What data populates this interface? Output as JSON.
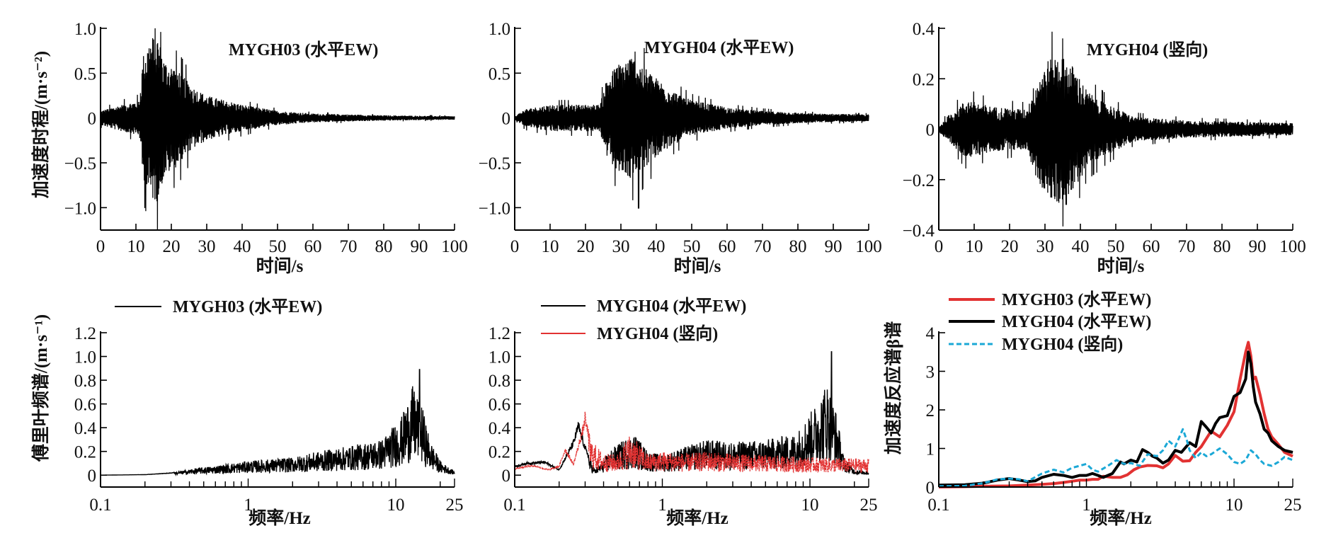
{
  "figure": {
    "x_label_time": "时间/s",
    "x_label_freq": "频率/Hz",
    "y_label_accel": "加速度时程/(m·s⁻²)",
    "y_label_fourier": "傅里叶频谱/(m·s⁻¹)",
    "y_label_beta": "加速度反应谱β谱"
  },
  "colors": {
    "black": "#000000",
    "red": "#e23232",
    "cyan": "#1ba8d6"
  },
  "chart_data": [
    {
      "id": "top-left",
      "type": "line",
      "title": "MYGH03 (水平EW)",
      "xlabel": "时间/s",
      "ylabel": "加速度时程/(m·s⁻²)",
      "xlim": [
        0,
        100
      ],
      "ylim": [
        -1.25,
        1.0
      ],
      "xticks": [
        0,
        10,
        20,
        30,
        40,
        50,
        60,
        70,
        80,
        90,
        100
      ],
      "yticks": [
        -1.0,
        -0.5,
        0,
        0.5,
        1.0
      ],
      "ytick_labels": [
        "−1.0",
        "−0.5",
        "0",
        "0.5",
        "1.0"
      ],
      "series": [
        {
          "name": "MYGH03 (水平EW)",
          "color": "#000000",
          "kind": "waveform",
          "envelope": [
            [
              0,
              0.08
            ],
            [
              5,
              0.14
            ],
            [
              11,
              0.2
            ],
            [
              12,
              0.7
            ],
            [
              14,
              0.9
            ],
            [
              16,
              0.95
            ],
            [
              18,
              0.65
            ],
            [
              22,
              0.55
            ],
            [
              26,
              0.35
            ],
            [
              30,
              0.25
            ],
            [
              40,
              0.15
            ],
            [
              50,
              0.08
            ],
            [
              60,
              0.05
            ],
            [
              80,
              0.03
            ],
            [
              100,
              0.02
            ]
          ],
          "peak": 0.96,
          "trough": -1.02
        }
      ]
    },
    {
      "id": "top-middle",
      "type": "line",
      "title": "MYGH04 (水平EW)",
      "xlabel": "时间/s",
      "ylabel": "",
      "xlim": [
        0,
        100
      ],
      "ylim": [
        -1.25,
        1.0
      ],
      "xticks": [
        0,
        10,
        20,
        30,
        40,
        50,
        60,
        70,
        80,
        90,
        100
      ],
      "yticks": [
        -1.0,
        -0.5,
        0,
        0.5,
        1.0
      ],
      "ytick_labels": [
        "−1.0",
        "−0.5",
        "0",
        "0.5",
        "1.0"
      ],
      "series": [
        {
          "name": "MYGH04 (水平EW)",
          "color": "#000000",
          "kind": "waveform",
          "envelope": [
            [
              0,
              0.02
            ],
            [
              3,
              0.1
            ],
            [
              10,
              0.15
            ],
            [
              24,
              0.15
            ],
            [
              26,
              0.45
            ],
            [
              29,
              0.6
            ],
            [
              33,
              0.7
            ],
            [
              36,
              0.6
            ],
            [
              40,
              0.45
            ],
            [
              45,
              0.3
            ],
            [
              50,
              0.2
            ],
            [
              60,
              0.12
            ],
            [
              70,
              0.08
            ],
            [
              85,
              0.05
            ],
            [
              100,
              0.04
            ]
          ],
          "peak": 0.74,
          "trough": -1.01
        }
      ]
    },
    {
      "id": "top-right",
      "type": "line",
      "title": "MYGH04 (竖向)",
      "xlabel": "时间/s",
      "ylabel": "",
      "xlim": [
        0,
        100
      ],
      "ylim": [
        -0.4,
        0.4
      ],
      "xticks": [
        0,
        10,
        20,
        30,
        40,
        50,
        60,
        70,
        80,
        90,
        100
      ],
      "yticks": [
        -0.4,
        -0.2,
        0,
        0.2,
        0.4
      ],
      "ytick_labels": [
        "−0.4",
        "−0.2",
        "0",
        "0.2",
        "0.4"
      ],
      "series": [
        {
          "name": "MYGH04 (竖向)",
          "color": "#000000",
          "kind": "waveform",
          "envelope": [
            [
              0,
              0.01
            ],
            [
              3,
              0.06
            ],
            [
              8,
              0.12
            ],
            [
              15,
              0.09
            ],
            [
              25,
              0.08
            ],
            [
              27,
              0.18
            ],
            [
              31,
              0.28
            ],
            [
              34,
              0.3
            ],
            [
              38,
              0.25
            ],
            [
              42,
              0.15
            ],
            [
              48,
              0.1
            ],
            [
              55,
              0.05
            ],
            [
              70,
              0.035
            ],
            [
              100,
              0.025
            ]
          ],
          "peak": 0.36,
          "trough": -0.3
        }
      ]
    },
    {
      "id": "bottom-left",
      "type": "line",
      "xscale": "log",
      "xlabel": "频率/Hz",
      "ylabel": "傅里叶频谱/(m·s⁻¹)",
      "xlim": [
        0.1,
        25
      ],
      "ylim": [
        -0.1,
        1.2
      ],
      "xticks": [
        0.1,
        1,
        10,
        25
      ],
      "xtick_labels": [
        "0.1",
        "1",
        "10",
        "25"
      ],
      "yticks": [
        0,
        0.2,
        0.4,
        0.6,
        0.8,
        1.0,
        1.2
      ],
      "ytick_labels": [
        "0",
        "0.2",
        "0.4",
        "0.6",
        "0.8",
        "1.0",
        "1.2"
      ],
      "legend": "top-left",
      "series": [
        {
          "name": "MYGH03 (水平EW)",
          "color": "#000000",
          "kind": "spectrum",
          "envelope": [
            [
              0.1,
              0.0
            ],
            [
              0.2,
              0.005
            ],
            [
              0.3,
              0.02
            ],
            [
              0.45,
              0.06
            ],
            [
              0.6,
              0.08
            ],
            [
              1,
              0.12
            ],
            [
              2,
              0.15
            ],
            [
              3,
              0.2
            ],
            [
              5,
              0.25
            ],
            [
              8,
              0.3
            ],
            [
              11,
              0.5
            ],
            [
              13,
              0.75
            ],
            [
              15,
              0.6
            ],
            [
              17,
              0.3
            ],
            [
              20,
              0.12
            ],
            [
              25,
              0.03
            ]
          ],
          "peak_hz": 14.5,
          "peak": 0.89
        }
      ]
    },
    {
      "id": "bottom-middle",
      "type": "line",
      "xscale": "log",
      "xlabel": "频率/Hz",
      "ylabel": "",
      "xlim": [
        0.1,
        25
      ],
      "ylim": [
        -0.1,
        1.2
      ],
      "xticks": [
        0.1,
        1,
        10,
        25
      ],
      "xtick_labels": [
        "0.1",
        "1",
        "10",
        "25"
      ],
      "yticks": [
        0,
        0.2,
        0.4,
        0.6,
        0.8,
        1.0,
        1.2
      ],
      "ytick_labels": [
        "0",
        "0.2",
        "0.4",
        "0.6",
        "0.8",
        "1.0",
        "1.2"
      ],
      "legend": "top-left",
      "series": [
        {
          "name": "MYGH04 (水平EW)",
          "color": "#000000",
          "kind": "spectrum",
          "envelope": [
            [
              0.1,
              0.08
            ],
            [
              0.12,
              0.11
            ],
            [
              0.16,
              0.12
            ],
            [
              0.2,
              0.05
            ],
            [
              0.25,
              0.3
            ],
            [
              0.27,
              0.46
            ],
            [
              0.3,
              0.25
            ],
            [
              0.35,
              0.05
            ],
            [
              0.45,
              0.22
            ],
            [
              0.55,
              0.3
            ],
            [
              0.65,
              0.35
            ],
            [
              0.8,
              0.2
            ],
            [
              1,
              0.17
            ],
            [
              1.5,
              0.25
            ],
            [
              2,
              0.3
            ],
            [
              3,
              0.28
            ],
            [
              5,
              0.3
            ],
            [
              8,
              0.35
            ],
            [
              11,
              0.6
            ],
            [
              13,
              0.8
            ],
            [
              15,
              0.55
            ],
            [
              17,
              0.15
            ],
            [
              20,
              0.05
            ],
            [
              25,
              0.03
            ]
          ],
          "peak_hz": 14.0,
          "peak": 1.04
        },
        {
          "name": "MYGH04 (竖向)",
          "color": "#e23232",
          "kind": "spectrum",
          "envelope": [
            [
              0.1,
              0.06
            ],
            [
              0.13,
              0.09
            ],
            [
              0.17,
              0.05
            ],
            [
              0.2,
              0.08
            ],
            [
              0.22,
              0.24
            ],
            [
              0.25,
              0.1
            ],
            [
              0.3,
              0.5
            ],
            [
              0.33,
              0.3
            ],
            [
              0.4,
              0.18
            ],
            [
              0.5,
              0.18
            ],
            [
              0.6,
              0.35
            ],
            [
              0.8,
              0.18
            ],
            [
              1,
              0.2
            ],
            [
              1.5,
              0.18
            ],
            [
              2,
              0.2
            ],
            [
              3,
              0.18
            ],
            [
              5,
              0.17
            ],
            [
              10,
              0.15
            ],
            [
              25,
              0.14
            ]
          ],
          "peak_hz": 0.3,
          "peak": 0.53
        }
      ]
    },
    {
      "id": "bottom-right",
      "type": "line",
      "xscale": "log",
      "xlabel": "频率/Hz",
      "ylabel": "加速度反应谱β谱",
      "xlim": [
        0.1,
        25
      ],
      "ylim": [
        0,
        4
      ],
      "xticks": [
        0.1,
        1,
        10,
        25
      ],
      "xtick_labels": [
        "0.1",
        "1",
        "10",
        "25"
      ],
      "yticks": [
        0,
        1,
        2,
        3,
        4
      ],
      "ytick_labels": [
        "0",
        "1",
        "2",
        "3",
        "4"
      ],
      "legend": "top-left",
      "series": [
        {
          "name": "MYGH03 (水平EW)",
          "color": "#e23232",
          "style": "solid",
          "x": [
            0.1,
            0.15,
            0.2,
            0.3,
            0.4,
            0.5,
            0.6,
            0.7,
            0.8,
            0.9,
            1.0,
            1.1,
            1.2,
            1.3,
            1.5,
            1.7,
            1.9,
            2.1,
            2.3,
            2.6,
            3.0,
            3.3,
            3.6,
            4.0,
            4.5,
            5.0,
            5.5,
            6.0,
            7.0,
            8.0,
            9.0,
            10.0,
            11.0,
            12.0,
            12.5,
            13.0,
            13.5,
            14.0,
            15.0,
            16.0,
            17.0,
            18.0,
            20.0,
            22.0,
            25.0
          ],
          "y": [
            0.0,
            0.01,
            0.02,
            0.03,
            0.05,
            0.07,
            0.09,
            0.12,
            0.15,
            0.18,
            0.18,
            0.2,
            0.2,
            0.28,
            0.25,
            0.25,
            0.32,
            0.45,
            0.52,
            0.56,
            0.55,
            0.5,
            0.6,
            0.82,
            0.67,
            0.68,
            0.9,
            1.05,
            1.45,
            1.3,
            1.6,
            1.95,
            2.8,
            3.5,
            3.75,
            3.4,
            2.8,
            2.85,
            2.4,
            1.9,
            1.5,
            1.3,
            1.1,
            0.9,
            0.8
          ]
        },
        {
          "name": "MYGH04 (水平EW)",
          "color": "#000000",
          "style": "solid",
          "x": [
            0.1,
            0.15,
            0.2,
            0.25,
            0.3,
            0.35,
            0.4,
            0.45,
            0.5,
            0.6,
            0.7,
            0.8,
            0.9,
            1.0,
            1.1,
            1.2,
            1.3,
            1.5,
            1.7,
            1.8,
            2.0,
            2.2,
            2.4,
            2.6,
            2.8,
            3.0,
            3.3,
            3.6,
            4.0,
            4.4,
            5.0,
            5.5,
            6.0,
            6.5,
            7.0,
            7.5,
            8.0,
            9.0,
            10.0,
            11.0,
            12.0,
            12.5,
            13.0,
            13.5,
            14.0,
            15.0,
            16.0,
            17.0,
            18.0,
            20.0,
            22.0,
            25.0
          ],
          "y": [
            0.05,
            0.06,
            0.1,
            0.18,
            0.22,
            0.18,
            0.14,
            0.16,
            0.25,
            0.33,
            0.3,
            0.25,
            0.3,
            0.3,
            0.35,
            0.3,
            0.25,
            0.35,
            0.65,
            0.6,
            0.7,
            0.65,
            0.97,
            0.9,
            0.8,
            0.75,
            0.62,
            0.7,
            0.95,
            0.9,
            1.15,
            1.05,
            1.7,
            1.55,
            1.4,
            1.65,
            1.8,
            1.85,
            2.35,
            2.45,
            2.8,
            3.5,
            3.2,
            2.6,
            2.2,
            1.9,
            1.5,
            1.4,
            1.2,
            1.05,
            0.95,
            0.9
          ]
        },
        {
          "name": "MYGH04 (竖向)",
          "color": "#1ba8d6",
          "style": "dashed",
          "x": [
            0.1,
            0.15,
            0.2,
            0.25,
            0.3,
            0.35,
            0.4,
            0.5,
            0.6,
            0.7,
            0.8,
            0.9,
            1.0,
            1.1,
            1.2,
            1.4,
            1.6,
            1.8,
            2.0,
            2.3,
            2.6,
            3.0,
            3.3,
            3.6,
            4.0,
            4.5,
            4.8,
            5.0,
            5.5,
            6.0,
            6.5,
            7.0,
            8.0,
            9.0,
            10.0,
            11.0,
            12.0,
            13.0,
            14.0,
            15.0,
            16.0,
            18.0,
            20.0,
            22.0,
            25.0
          ],
          "y": [
            0.02,
            0.03,
            0.1,
            0.2,
            0.22,
            0.2,
            0.15,
            0.35,
            0.45,
            0.38,
            0.5,
            0.55,
            0.6,
            0.45,
            0.4,
            0.55,
            0.7,
            0.6,
            0.62,
            0.55,
            0.85,
            0.8,
            0.95,
            1.2,
            1.05,
            1.5,
            1.2,
            0.95,
            0.75,
            0.9,
            0.8,
            0.85,
            1.0,
            0.85,
            0.65,
            0.6,
            0.7,
            0.95,
            0.85,
            0.7,
            0.6,
            0.55,
            0.65,
            0.78,
            0.7
          ]
        }
      ]
    }
  ]
}
